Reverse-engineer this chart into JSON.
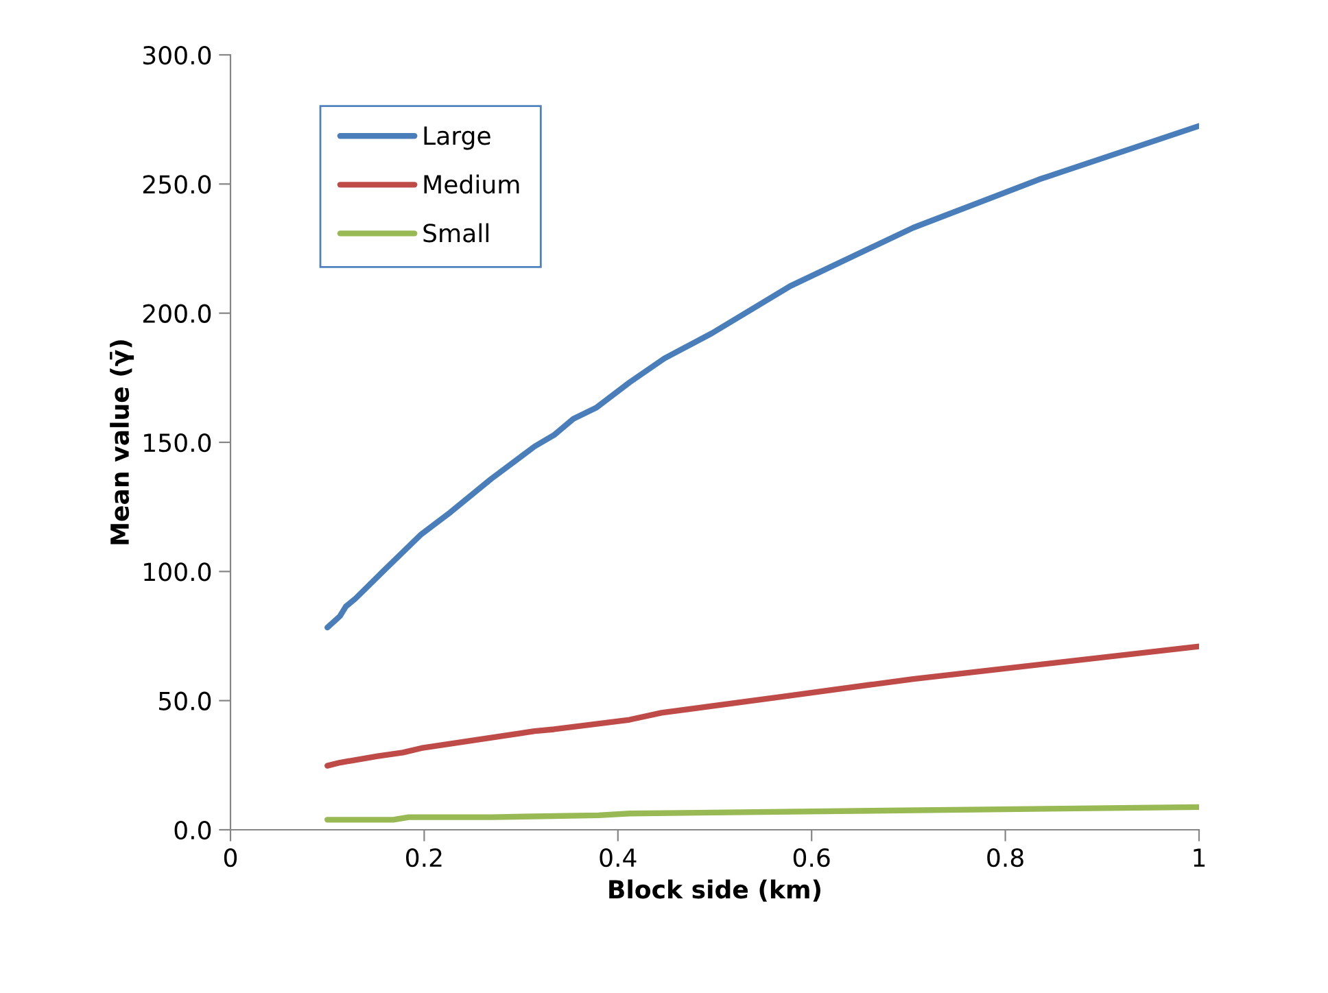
{
  "chart_data": {
    "type": "line",
    "xlabel": "Block side (km)",
    "ylabel": "Mean value (γ̄)",
    "xlim": [
      0,
      1
    ],
    "xticks": [
      0,
      0.2,
      0.4,
      0.6,
      0.8,
      1
    ],
    "ylim": [
      0,
      300
    ],
    "yticks": [
      {
        "value": 0,
        "label": "0.0"
      },
      {
        "value": 50,
        "label": "50.0"
      },
      {
        "value": 100,
        "label": "100.0"
      },
      {
        "value": 150,
        "label": "150.0"
      },
      {
        "value": 200,
        "label": "200.0"
      },
      {
        "value": 250,
        "label": "250.0"
      },
      {
        "value": 300,
        "label": "300.0"
      }
    ],
    "grid": false,
    "legend": "top left",
    "marker": "none",
    "line_style": "solid",
    "series": [
      {
        "name": "Large",
        "color": "#4a7ebb",
        "x": [
          0.1,
          0.113,
          0.119,
          0.129,
          0.158,
          0.197,
          0.227,
          0.269,
          0.314,
          0.334,
          0.354,
          0.378,
          0.412,
          0.448,
          0.497,
          0.578,
          0.705,
          0.835,
          1.0
        ],
        "values": [
          78.3,
          82.7,
          86.4,
          89.5,
          100.2,
          114.4,
          122.9,
          135.8,
          148.4,
          152.8,
          159.1,
          163.5,
          173.2,
          182.5,
          192.2,
          210.5,
          233.1,
          251.8,
          272.5
        ]
      },
      {
        "name": "Medium",
        "color": "#be4b48",
        "x": [
          0.1,
          0.113,
          0.152,
          0.178,
          0.197,
          0.314,
          0.334,
          0.412,
          0.445,
          0.575,
          0.705,
          1.0
        ],
        "values": [
          24.8,
          26.0,
          28.5,
          29.9,
          31.6,
          38.2,
          38.9,
          42.6,
          45.3,
          51.8,
          58.4,
          71.0
        ]
      },
      {
        "name": "Small",
        "color": "#98b954",
        "x": [
          0.1,
          0.168,
          0.184,
          0.269,
          0.38,
          0.412,
          1.0
        ],
        "values": [
          3.9,
          3.9,
          4.9,
          4.9,
          5.6,
          6.3,
          8.8
        ]
      }
    ]
  }
}
